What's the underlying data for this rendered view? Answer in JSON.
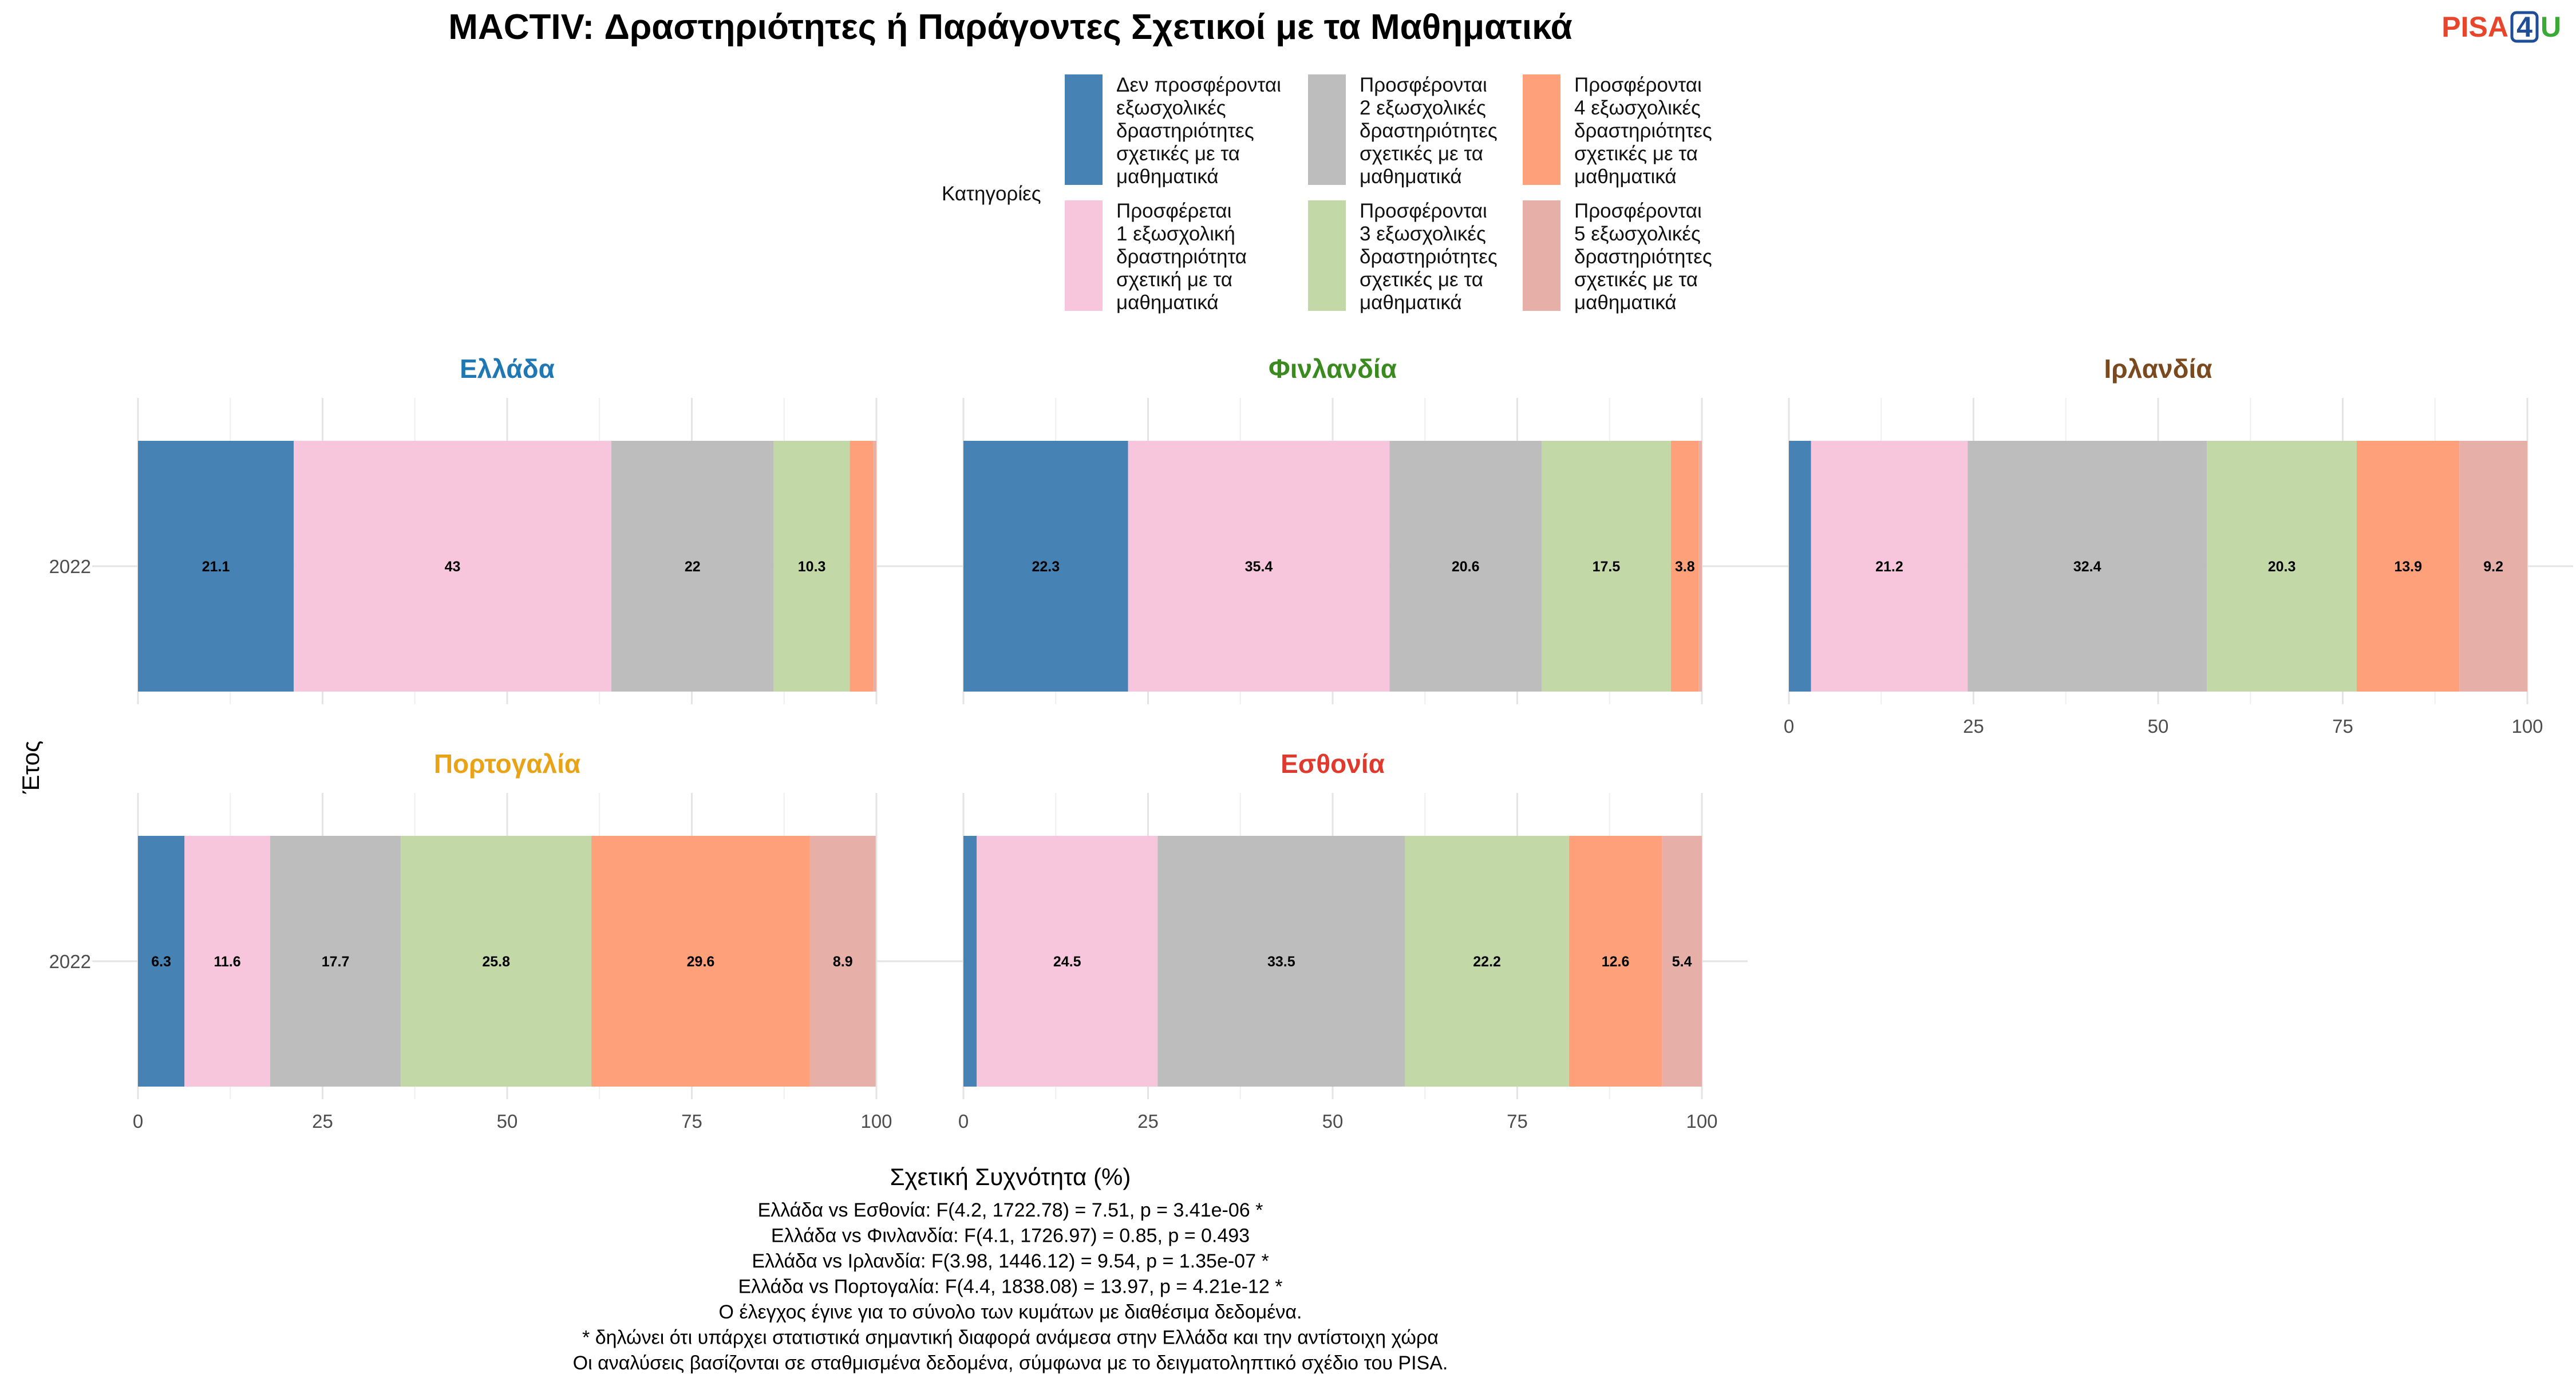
{
  "logo": {
    "part1": "PISA",
    "part2": "4",
    "part3": "U",
    "color1": "#e8462c",
    "color2": "#1f4e99",
    "color3": "#3aa935"
  },
  "chart_data": {
    "type": "bar",
    "orientation": "horizontal-stacked",
    "title": "MACTIV: Δραστηριότητες ή Παράγοντες Σχετικοί με τα Μαθηματικά",
    "xlabel": "Σχετική Συχνότητα (%)",
    "ylabel": "Έτος",
    "xlim": [
      0,
      100
    ],
    "xticks": [
      "0",
      "25",
      "50",
      "75",
      "100"
    ],
    "legend_title": "Κατηγορίες",
    "legend_placement": "top",
    "grid": true,
    "categories": [
      {
        "label": "Δεν προσφέρονται εξωσχολικές δραστηριότητες σχετικές με τα μαθηματικά",
        "lines": [
          "Δεν προσφέρονται",
          "εξωσχολικές",
          "δραστηριότητες",
          "σχετικές με τα",
          "μαθηματικά"
        ],
        "color": "#4682b4"
      },
      {
        "label": "Προσφέρεται 1 εξωσχολική δραστηριότητα σχετική με τα μαθηματικά",
        "lines": [
          "Προσφέρεται",
          "1 εξωσχολική",
          "δραστηριότητα",
          "σχετική με τα",
          "μαθηματικά"
        ],
        "color": "#f7c6dc"
      },
      {
        "label": "Προσφέρονται 2 εξωσχολικές δραστηριότητες σχετικές με τα μαθηματικά",
        "lines": [
          "Προσφέρονται",
          "2 εξωσχολικές",
          "δραστηριότητες",
          "σχετικές με τα",
          "μαθηματικά"
        ],
        "color": "#bdbdbd"
      },
      {
        "label": "Προσφέρονται 3 εξωσχολικές δραστηριότητες σχετικές με τα μαθηματικά",
        "lines": [
          "Προσφέρονται",
          "3 εξωσχολικές",
          "δραστηριότητες",
          "σχετικές με τα",
          "μαθηματικά"
        ],
        "color": "#c2d8a6"
      },
      {
        "label": "Προσφέρονται 4 εξωσχολικές δραστηριότητες σχετικές με τα μαθηματικά",
        "lines": [
          "Προσφέρονται",
          "4 εξωσχολικές",
          "δραστηριότητες",
          "σχετικές με τα",
          "μαθηματικά"
        ],
        "color": "#fea07a"
      },
      {
        "label": "Προσφέρονται 5 εξωσχολικές δραστηριότητες σχετικές με τα μαθηματικά",
        "lines": [
          "Προσφέρονται",
          "5 εξωσχολικές",
          "δραστηριότητες",
          "σχετικές με τα",
          "μαθηματικά"
        ],
        "color": "#e6b0a9"
      }
    ],
    "panels": [
      {
        "name": "Ελλάδα",
        "title_color": "#1f77b4",
        "year": "2022",
        "values": [
          21.1,
          43,
          22,
          10.3,
          3.2,
          0.4
        ],
        "labels": [
          "21.1",
          "43",
          "22",
          "10.3",
          "",
          ""
        ],
        "show_x_axis": false
      },
      {
        "name": "Φινλανδία",
        "title_color": "#3b8a1f",
        "year": "2022",
        "values": [
          22.3,
          35.4,
          20.6,
          17.5,
          3.8,
          0.4
        ],
        "labels": [
          "22.3",
          "35.4",
          "20.6",
          "17.5",
          "3.8",
          ""
        ],
        "show_x_axis": false
      },
      {
        "name": "Ιρλανδία",
        "title_color": "#7a4a1e",
        "year": "2022",
        "values": [
          3.0,
          21.2,
          32.4,
          20.3,
          13.9,
          9.2
        ],
        "labels": [
          "",
          "21.2",
          "32.4",
          "20.3",
          "13.9",
          "9.2"
        ],
        "show_x_axis": true
      },
      {
        "name": "Πορτογαλία",
        "title_color": "#e8a317",
        "year": "2022",
        "values": [
          6.3,
          11.6,
          17.7,
          25.8,
          29.6,
          8.9
        ],
        "labels": [
          "6.3",
          "11.6",
          "17.7",
          "25.8",
          "29.6",
          "8.9"
        ],
        "show_x_axis": true
      },
      {
        "name": "Εσθονία",
        "title_color": "#e03a2f",
        "year": "2022",
        "values": [
          1.8,
          24.5,
          33.5,
          22.2,
          12.6,
          5.4
        ],
        "labels": [
          "",
          "24.5",
          "33.5",
          "22.2",
          "12.6",
          "5.4"
        ],
        "show_x_axis": true
      }
    ],
    "footnotes": [
      "Ελλάδα vs Εσθονία: F(4.2, 1722.78) = 7.51, p = 3.41e-06 *",
      "Ελλάδα vs Φινλανδία: F(4.1, 1726.97) = 0.85, p = 0.493",
      "Ελλάδα vs Ιρλανδία: F(3.98, 1446.12) = 9.54, p = 1.35e-07 *",
      "Ελλάδα vs Πορτογαλία: F(4.4, 1838.08) = 13.97, p = 4.21e-12 *",
      "Ο έλεγχος έγινε για το σύνολο των κυμάτων με διαθέσιμα δεδομένα.",
      "* δηλώνει ότι υπάρχει στατιστικά σημαντική διαφορά ανάμεσα στην Ελλάδα και την αντίστοιχη χώρα",
      "Οι αναλύσεις βασίζονται σε σταθμισμένα δεδομένα, σύμφωνα με το δειγματοληπτικό σχέδιο του PISA."
    ]
  }
}
